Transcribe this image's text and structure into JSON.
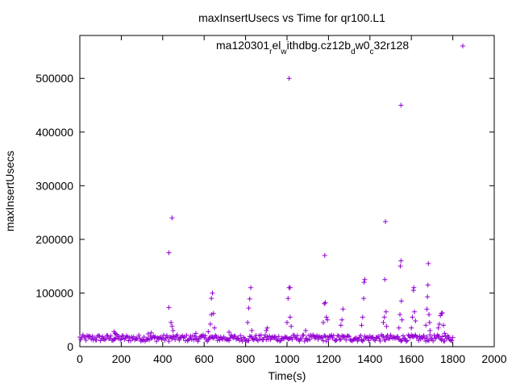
{
  "chart_data": {
    "type": "scatter",
    "title": "maxInsertUsecs vs Time for qr100.L1",
    "xlabel": "Time(s)",
    "ylabel": "maxInsertUsecs",
    "xlim": [
      0,
      2000
    ],
    "ylim": [
      0,
      580000
    ],
    "xticks": [
      0,
      200,
      400,
      600,
      800,
      1000,
      1200,
      1400,
      1600,
      1800,
      2000
    ],
    "yticks": [
      0,
      100000,
      200000,
      300000,
      400000,
      500000
    ],
    "marker": "+",
    "color": "#9400d3",
    "legend": {
      "position": "top-right",
      "label_parts": [
        "ma120301",
        "r",
        "el",
        "w",
        "ithdbg.cz12b",
        "d",
        "w0",
        "c",
        "32r128"
      ]
    },
    "baseline": {
      "x_start": 0,
      "x_end": 1800,
      "x_step": 5,
      "y_min": 10000,
      "y_max": 22000
    },
    "series": [
      {
        "name": "ma120301_rel_withdbg.cz12b_dw0_c32r128",
        "points": [
          [
            165,
            28000
          ],
          [
            170,
            25000
          ],
          [
            175,
            23000
          ],
          [
            330,
            24000
          ],
          [
            345,
            26000
          ],
          [
            430,
            175000
          ],
          [
            430,
            73000
          ],
          [
            440,
            45000
          ],
          [
            445,
            38000
          ],
          [
            445,
            240000
          ],
          [
            450,
            30000
          ],
          [
            560,
            25000
          ],
          [
            620,
            28000
          ],
          [
            630,
            42000
          ],
          [
            635,
            60000
          ],
          [
            635,
            90000
          ],
          [
            640,
            100000
          ],
          [
            645,
            62000
          ],
          [
            650,
            35000
          ],
          [
            720,
            27000
          ],
          [
            810,
            45000
          ],
          [
            815,
            72000
          ],
          [
            820,
            89000
          ],
          [
            825,
            110000
          ],
          [
            830,
            30000
          ],
          [
            900,
            30000
          ],
          [
            905,
            35000
          ],
          [
            1000,
            45000
          ],
          [
            1005,
            90000
          ],
          [
            1010,
            110000
          ],
          [
            1010,
            500000
          ],
          [
            1015,
            110000
          ],
          [
            1015,
            55000
          ],
          [
            1020,
            38000
          ],
          [
            1090,
            30000
          ],
          [
            1175,
            45000
          ],
          [
            1180,
            80000
          ],
          [
            1182,
            170000
          ],
          [
            1185,
            82000
          ],
          [
            1190,
            55000
          ],
          [
            1195,
            50000
          ],
          [
            1260,
            40000
          ],
          [
            1265,
            50000
          ],
          [
            1270,
            70000
          ],
          [
            1360,
            40000
          ],
          [
            1365,
            55000
          ],
          [
            1370,
            90000
          ],
          [
            1372,
            120000
          ],
          [
            1375,
            125000
          ],
          [
            1465,
            45000
          ],
          [
            1470,
            55000
          ],
          [
            1472,
            125000
          ],
          [
            1475,
            233000
          ],
          [
            1478,
            65000
          ],
          [
            1480,
            38000
          ],
          [
            1540,
            35000
          ],
          [
            1545,
            60000
          ],
          [
            1547,
            150000
          ],
          [
            1550,
            160000
          ],
          [
            1550,
            450000
          ],
          [
            1552,
            85000
          ],
          [
            1555,
            50000
          ],
          [
            1600,
            35000
          ],
          [
            1605,
            55000
          ],
          [
            1610,
            105000
          ],
          [
            1612,
            110000
          ],
          [
            1615,
            65000
          ],
          [
            1620,
            48000
          ],
          [
            1670,
            40000
          ],
          [
            1675,
            70000
          ],
          [
            1678,
            93000
          ],
          [
            1680,
            115000
          ],
          [
            1682,
            155000
          ],
          [
            1685,
            60000
          ],
          [
            1688,
            45000
          ],
          [
            1690,
            30000
          ],
          [
            1730,
            35000
          ],
          [
            1735,
            42000
          ],
          [
            1740,
            58000
          ],
          [
            1745,
            62000
          ],
          [
            1750,
            63000
          ],
          [
            1755,
            40000
          ],
          [
            1760,
            25000
          ]
        ]
      }
    ]
  }
}
